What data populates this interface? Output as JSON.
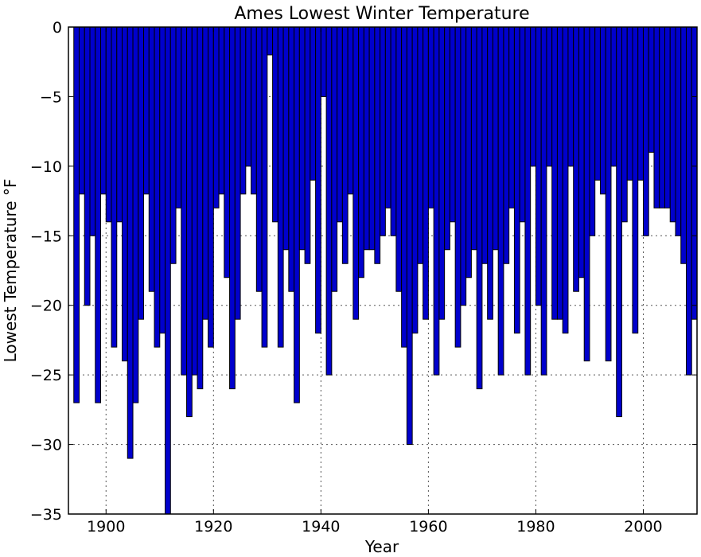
{
  "chart_data": {
    "type": "bar",
    "title": "Ames Lowest Winter Temperature",
    "xlabel": "Year",
    "ylabel": "Lowest Temperature °F",
    "xlim": [
      1893,
      2010
    ],
    "ylim": [
      -35,
      0
    ],
    "xticks": [
      1900,
      1920,
      1940,
      1960,
      1980,
      2000
    ],
    "yticks": [
      0,
      -5,
      -10,
      -15,
      -20,
      -25,
      -30,
      -35
    ],
    "yticklabels": [
      "0",
      "−5",
      "−10",
      "−15",
      "−20",
      "−25",
      "−30",
      "−35"
    ],
    "grid": true,
    "colors": {
      "bar": "#0000cc",
      "edge": "#000000"
    },
    "x": [
      1894,
      1895,
      1896,
      1897,
      1898,
      1899,
      1900,
      1901,
      1902,
      1903,
      1904,
      1905,
      1906,
      1907,
      1908,
      1909,
      1910,
      1911,
      1912,
      1913,
      1914,
      1915,
      1916,
      1917,
      1918,
      1919,
      1920,
      1921,
      1922,
      1923,
      1924,
      1925,
      1926,
      1927,
      1928,
      1929,
      1930,
      1931,
      1932,
      1933,
      1934,
      1935,
      1936,
      1937,
      1938,
      1939,
      1940,
      1941,
      1942,
      1943,
      1944,
      1945,
      1946,
      1947,
      1948,
      1949,
      1950,
      1951,
      1952,
      1953,
      1954,
      1955,
      1956,
      1957,
      1958,
      1959,
      1960,
      1961,
      1962,
      1963,
      1964,
      1965,
      1966,
      1967,
      1968,
      1969,
      1970,
      1971,
      1972,
      1973,
      1974,
      1975,
      1976,
      1977,
      1978,
      1979,
      1980,
      1981,
      1982,
      1983,
      1984,
      1985,
      1986,
      1987,
      1988,
      1989,
      1990,
      1991,
      1992,
      1993,
      1994,
      1995,
      1996,
      1997,
      1998,
      1999,
      2000,
      2001,
      2002,
      2003,
      2004,
      2005,
      2006,
      2007,
      2008,
      2009
    ],
    "values": [
      -27,
      -12,
      -20,
      -15,
      -27,
      -12,
      -14,
      -23,
      -14,
      -24,
      -31,
      -27,
      -21,
      -12,
      -19,
      -23,
      -22,
      -35,
      -17,
      -13,
      -25,
      -28,
      -25,
      -26,
      -21,
      -23,
      -13,
      -12,
      -18,
      -26,
      -21,
      -12,
      -10,
      -12,
      -19,
      -23,
      -2,
      -14,
      -23,
      -16,
      -19,
      -27,
      -16,
      -17,
      -11,
      -22,
      -5,
      -25,
      -19,
      -14,
      -17,
      -12,
      -21,
      -18,
      -16,
      -16,
      -17,
      -15,
      -13,
      -15,
      -19,
      -23,
      -30,
      -22,
      -17,
      -21,
      -13,
      -25,
      -21,
      -16,
      -14,
      -23,
      -20,
      -18,
      -16,
      -26,
      -17,
      -21,
      -16,
      -25,
      -17,
      -13,
      -22,
      -14,
      -25,
      -10,
      -20,
      -25,
      -10,
      -21,
      -21,
      -22,
      -10,
      -19,
      -18,
      -24,
      -15,
      -11,
      -12,
      -24,
      -10,
      -28,
      -14,
      -11,
      -22,
      -11,
      -15,
      -9,
      -13,
      -13,
      -13,
      -14,
      -15,
      -17,
      -25,
      -21
    ]
  }
}
